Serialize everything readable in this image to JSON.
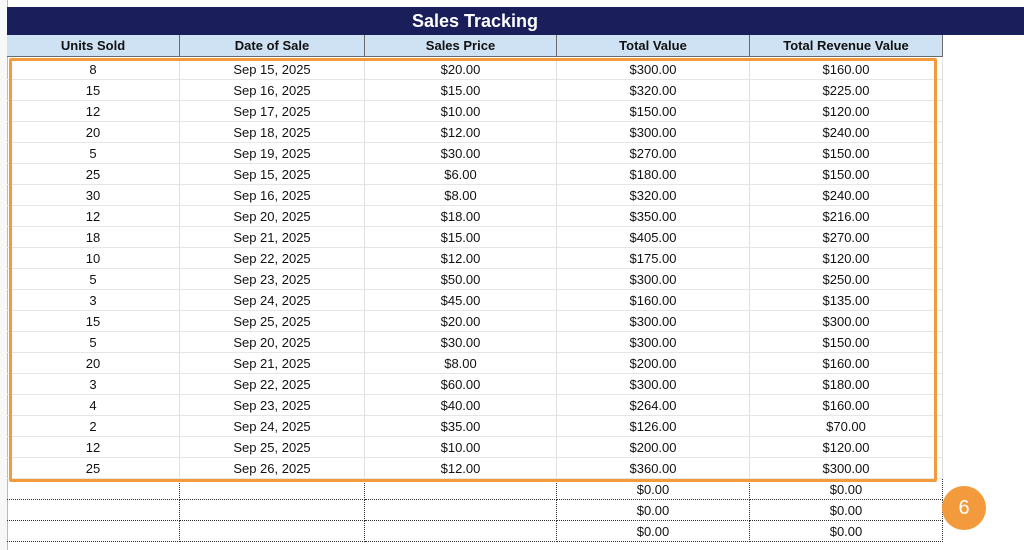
{
  "title": "Sales Tracking",
  "table": {
    "headers": [
      "Units Sold",
      "Date of Sale",
      "Sales Price",
      "Total Value",
      "Total Revenue Value"
    ],
    "rows": [
      [
        "8",
        "Sep 15, 2025",
        "$20.00",
        "$300.00",
        "$160.00"
      ],
      [
        "15",
        "Sep 16, 2025",
        "$15.00",
        "$320.00",
        "$225.00"
      ],
      [
        "12",
        "Sep 17, 2025",
        "$10.00",
        "$150.00",
        "$120.00"
      ],
      [
        "20",
        "Sep 18, 2025",
        "$12.00",
        "$300.00",
        "$240.00"
      ],
      [
        "5",
        "Sep 19, 2025",
        "$30.00",
        "$270.00",
        "$150.00"
      ],
      [
        "25",
        "Sep 15, 2025",
        "$6.00",
        "$180.00",
        "$150.00"
      ],
      [
        "30",
        "Sep 16, 2025",
        "$8.00",
        "$320.00",
        "$240.00"
      ],
      [
        "12",
        "Sep 20, 2025",
        "$18.00",
        "$350.00",
        "$216.00"
      ],
      [
        "18",
        "Sep 21, 2025",
        "$15.00",
        "$405.00",
        "$270.00"
      ],
      [
        "10",
        "Sep 22, 2025",
        "$12.00",
        "$175.00",
        "$120.00"
      ],
      [
        "5",
        "Sep 23, 2025",
        "$50.00",
        "$300.00",
        "$250.00"
      ],
      [
        "3",
        "Sep 24, 2025",
        "$45.00",
        "$160.00",
        "$135.00"
      ],
      [
        "15",
        "Sep 25, 2025",
        "$20.00",
        "$300.00",
        "$300.00"
      ],
      [
        "5",
        "Sep 20, 2025",
        "$30.00",
        "$300.00",
        "$150.00"
      ],
      [
        "20",
        "Sep 21, 2025",
        "$8.00",
        "$200.00",
        "$160.00"
      ],
      [
        "3",
        "Sep 22, 2025",
        "$60.00",
        "$300.00",
        "$180.00"
      ],
      [
        "4",
        "Sep 23, 2025",
        "$40.00",
        "$264.00",
        "$160.00"
      ],
      [
        "2",
        "Sep 24, 2025",
        "$35.00",
        "$126.00",
        "$70.00"
      ],
      [
        "12",
        "Sep 25, 2025",
        "$10.00",
        "$200.00",
        "$120.00"
      ],
      [
        "25",
        "Sep 26, 2025",
        "$12.00",
        "$360.00",
        "$300.00"
      ]
    ],
    "empty_rows": [
      [
        "$0.00",
        "$0.00"
      ],
      [
        "$0.00",
        "$0.00"
      ],
      [
        "$0.00",
        "$0.00"
      ]
    ]
  },
  "badge": "6"
}
